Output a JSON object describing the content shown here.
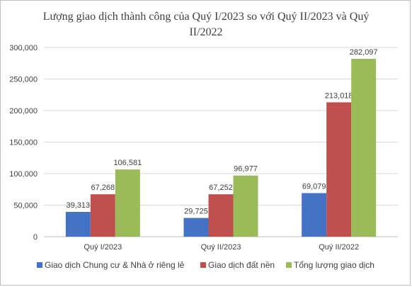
{
  "chart_data": {
    "type": "bar",
    "title": "Lượng giao dịch thành công của Quý I/2023 so với Quý II/2023 và Quý II/2022",
    "categories": [
      "Quý I/2023",
      "Quý II/2023",
      "Quý II/2022"
    ],
    "series": [
      {
        "name": "Giao dịch Chung cư & Nhà ở riêng lẻ",
        "color": "#4472c4",
        "values": [
          39313,
          29725,
          69079
        ],
        "labels": [
          "39,313",
          "29,725",
          "69,079"
        ]
      },
      {
        "name": "Giao dịch đất nền",
        "color": "#c0504d",
        "values": [
          67268,
          67252,
          213018
        ],
        "labels": [
          "67,268",
          "67,252",
          "213,018"
        ]
      },
      {
        "name": "Tổng lượng giao dịch",
        "color": "#9bbb59",
        "values": [
          106581,
          96977,
          282097
        ],
        "labels": [
          "106,581",
          "96,977",
          "282,097"
        ]
      }
    ],
    "yticks": [
      "0",
      "50,000",
      "100,000",
      "150,000",
      "200,000",
      "250,000",
      "300,000"
    ],
    "ylim": [
      0,
      300000
    ],
    "grid": true,
    "legend_position": "bottom"
  }
}
